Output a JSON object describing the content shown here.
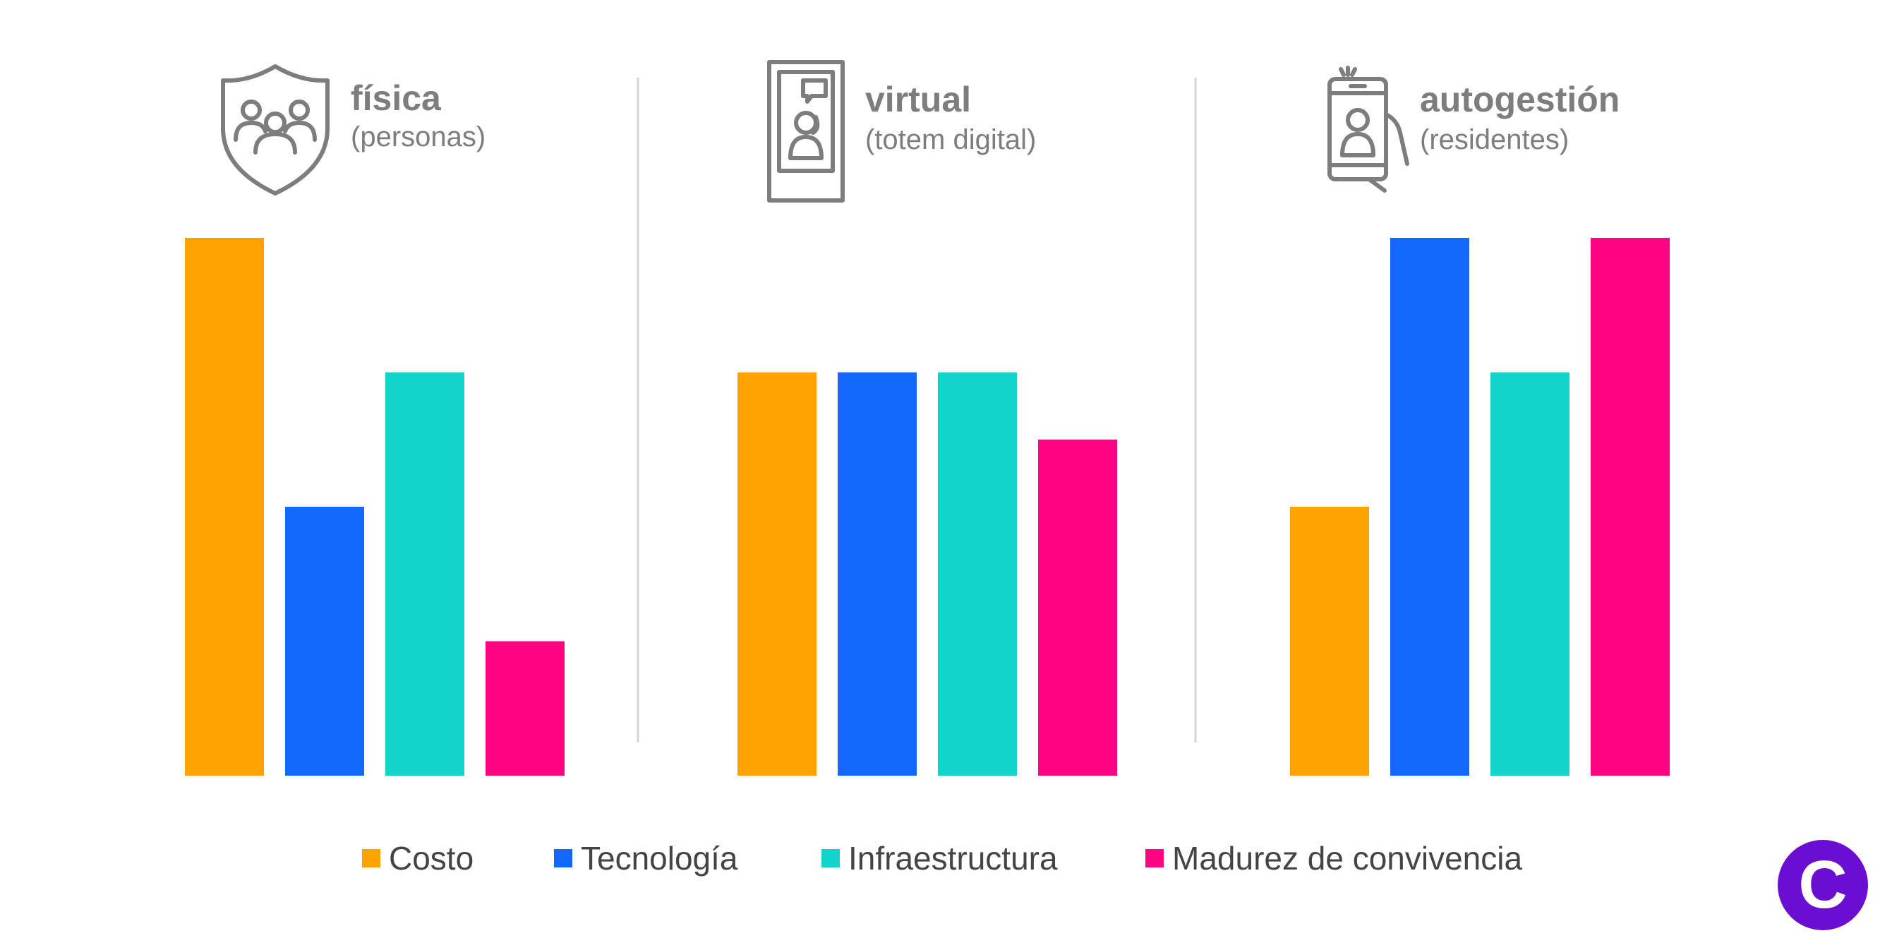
{
  "chart_data": {
    "type": "bar",
    "title": "",
    "xlabel": "",
    "ylabel": "",
    "ylim": [
      0,
      4
    ],
    "grid": false,
    "legend_position": "bottom",
    "groups": [
      {
        "title": "física",
        "subtitle": "(personas)",
        "icon": "shield-people-icon"
      },
      {
        "title": "virtual",
        "subtitle": "(totem digital)",
        "icon": "digital-totem-icon"
      },
      {
        "title": "autogestión",
        "subtitle": "(residentes)",
        "icon": "phone-in-hand-icon"
      }
    ],
    "categories": [
      "física",
      "virtual",
      "autogestión"
    ],
    "series": [
      {
        "name": "Costo",
        "color": "#ffa300",
        "values": [
          4,
          3,
          2
        ]
      },
      {
        "name": "Tecnología",
        "color": "#1168fb",
        "values": [
          2,
          3,
          4
        ]
      },
      {
        "name": "Infraestructura",
        "color": "#13d4ca",
        "values": [
          3,
          3,
          3
        ]
      },
      {
        "name": "Madurez de convivencia",
        "color": "#ff0481",
        "values": [
          1,
          2.5,
          4
        ]
      }
    ]
  },
  "logo": {
    "letter": "C",
    "color": "#6a0fd1"
  },
  "colors": {
    "icon_gray": "#7d7d7d",
    "divider": "#d5d5d5"
  }
}
